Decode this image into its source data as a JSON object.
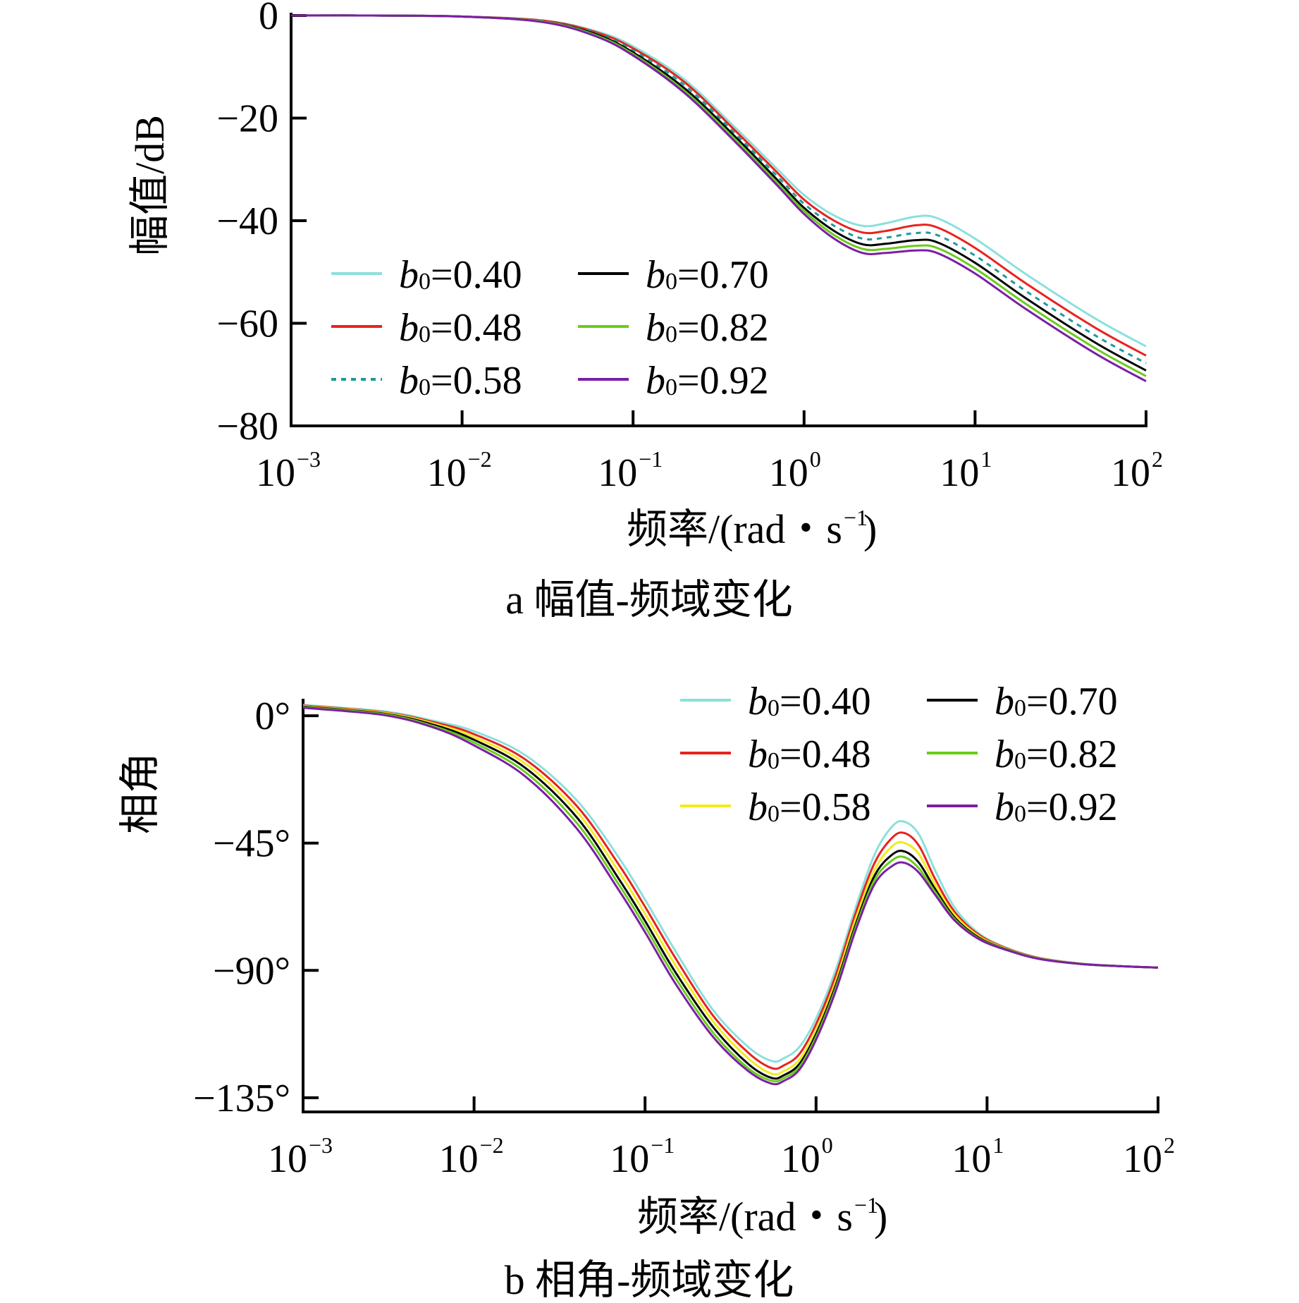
{
  "chart_data": [
    {
      "id": "amplitude",
      "type": "line",
      "caption": "a  幅值-频域变化",
      "xlabel": "频率/(rad・s",
      "xlabel_sup": "−1",
      "xlabel_close": ")",
      "ylabel": "幅值/dB",
      "xscale": "log",
      "xlim": [
        0.001,
        100
      ],
      "ylim": [
        -80,
        0
      ],
      "xticks": [
        {
          "base": "10",
          "exp": "−3",
          "value": 0.001
        },
        {
          "base": "10",
          "exp": "−2",
          "value": 0.01
        },
        {
          "base": "10",
          "exp": "−1",
          "value": 0.1
        },
        {
          "base": "10",
          "exp": "0",
          "value": 1
        },
        {
          "base": "10",
          "exp": "1",
          "value": 10
        },
        {
          "base": "10",
          "exp": "2",
          "value": 100
        }
      ],
      "yticks": [
        {
          "label": "0",
          "value": 0
        },
        {
          "label": "−20",
          "value": -20
        },
        {
          "label": "−40",
          "value": -40
        },
        {
          "label": "−60",
          "value": -60
        },
        {
          "label": "−80",
          "value": -80
        }
      ],
      "x": [
        0.001,
        0.003,
        0.01,
        0.03,
        0.06,
        0.1,
        0.2,
        0.4,
        0.7,
        1.0,
        1.5,
        2.2,
        3.0,
        4.5,
        6.0,
        10,
        20,
        50,
        100
      ],
      "series": [
        {
          "name": "b0=0.40",
          "sym": "b",
          "sub": "0",
          "val": "=0.40",
          "color": "#8be0dc",
          "dash": "",
          "values": [
            0,
            0,
            -0.2,
            -1.0,
            -3.0,
            -6.0,
            -12.5,
            -22.0,
            -30.0,
            -35.0,
            -39.0,
            -41.0,
            -40.5,
            -39.2,
            -39.5,
            -43.5,
            -50.5,
            -59.0,
            -64.5
          ]
        },
        {
          "name": "b0=0.48",
          "sym": "b",
          "sub": "0",
          "val": "=0.48",
          "color": "#e8231e",
          "dash": "",
          "values": [
            0,
            0,
            -0.2,
            -1.0,
            -3.2,
            -6.4,
            -13.0,
            -22.6,
            -30.7,
            -35.9,
            -40.0,
            -42.3,
            -42.0,
            -40.9,
            -41.3,
            -45.3,
            -52.3,
            -60.8,
            -66.3
          ]
        },
        {
          "name": "b0=0.58",
          "sym": "b",
          "sub": "0",
          "val": "=0.58",
          "color": "#1e9a9a",
          "dash": "7,7",
          "values": [
            0,
            0,
            -0.2,
            -1.1,
            -3.4,
            -6.8,
            -13.6,
            -23.2,
            -31.4,
            -36.7,
            -41.0,
            -43.5,
            -43.3,
            -42.4,
            -42.8,
            -46.8,
            -53.8,
            -62.3,
            -67.8
          ]
        },
        {
          "name": "b0=0.70",
          "sym": "b",
          "sub": "0",
          "val": "=0.70",
          "color": "#000000",
          "dash": "",
          "values": [
            0,
            0,
            -0.2,
            -1.2,
            -3.6,
            -7.2,
            -14.2,
            -23.8,
            -32.1,
            -37.5,
            -42.0,
            -44.6,
            -44.5,
            -43.8,
            -44.2,
            -48.2,
            -55.2,
            -63.7,
            -69.2
          ]
        },
        {
          "name": "b0=0.82",
          "sym": "b",
          "sub": "0",
          "val": "=0.82",
          "color": "#69cc19",
          "dash": "",
          "values": [
            0,
            0,
            -0.2,
            -1.2,
            -3.8,
            -7.5,
            -14.7,
            -24.3,
            -32.7,
            -38.1,
            -42.8,
            -45.5,
            -45.5,
            -44.9,
            -45.3,
            -49.3,
            -56.3,
            -64.8,
            -70.3
          ]
        },
        {
          "name": "b0=0.92",
          "sym": "b",
          "sub": "0",
          "val": "=0.92",
          "color": "#7a1fa6",
          "dash": "",
          "values": [
            0,
            0,
            -0.2,
            -1.3,
            -4.0,
            -7.8,
            -15.1,
            -24.8,
            -33.2,
            -38.7,
            -43.5,
            -46.3,
            -46.3,
            -45.8,
            -46.3,
            -50.3,
            -57.3,
            -65.8,
            -71.3
          ]
        }
      ]
    },
    {
      "id": "phase",
      "type": "line",
      "caption": "b  相角-频域变化",
      "xlabel": "频率/(rad・s",
      "xlabel_sup": "−1",
      "xlabel_close": ")",
      "ylabel": "相角",
      "xscale": "log",
      "xlim": [
        0.001,
        100
      ],
      "ylim": [
        -140,
        5
      ],
      "xticks": [
        {
          "base": "10",
          "exp": "−3",
          "value": 0.001
        },
        {
          "base": "10",
          "exp": "−2",
          "value": 0.01
        },
        {
          "base": "10",
          "exp": "−1",
          "value": 0.1
        },
        {
          "base": "10",
          "exp": "0",
          "value": 1
        },
        {
          "base": "10",
          "exp": "1",
          "value": 10
        },
        {
          "base": "10",
          "exp": "2",
          "value": 100
        }
      ],
      "yticks": [
        {
          "label": "0°",
          "value": 0
        },
        {
          "label": "−45°",
          "value": -45
        },
        {
          "label": "−90°",
          "value": -90
        },
        {
          "label": "−135°",
          "value": -135
        }
      ],
      "x": [
        0.001,
        0.003,
        0.006,
        0.01,
        0.02,
        0.04,
        0.07,
        0.1,
        0.15,
        0.25,
        0.4,
        0.55,
        0.65,
        0.8,
        1.0,
        1.3,
        1.7,
        2.2,
        2.8,
        3.3,
        4.0,
        5.0,
        6.5,
        9.0,
        13,
        20,
        35,
        60,
        100
      ],
      "series": [
        {
          "name": "b0=0.40",
          "sym": "b",
          "sub": "0",
          "val": "=0.40",
          "color": "#8be0dc",
          "dash": "",
          "values": [
            3.8,
            1.5,
            -2.0,
            -5.5,
            -14.0,
            -30.0,
            -50.0,
            -65.0,
            -83.0,
            -104.0,
            -117.0,
            -122.0,
            -121.0,
            -117.0,
            -107.0,
            -90.0,
            -68.0,
            -49.0,
            -39.0,
            -37.5,
            -42.0,
            -55.0,
            -68.0,
            -77.0,
            -82.0,
            -85.5,
            -87.5,
            -88.5,
            -89.0
          ]
        },
        {
          "name": "b0=0.48",
          "sym": "b",
          "sub": "0",
          "val": "=0.48",
          "color": "#e8231e",
          "dash": "",
          "values": [
            3.6,
            1.2,
            -2.5,
            -6.5,
            -15.5,
            -32.0,
            -52.5,
            -67.5,
            -85.5,
            -106.0,
            -119.0,
            -124.5,
            -123.5,
            -119.5,
            -109.0,
            -92.0,
            -70.0,
            -52.0,
            -43.0,
            -41.5,
            -46.0,
            -58.0,
            -69.5,
            -77.5,
            -82.2,
            -85.6,
            -87.6,
            -88.5,
            -89.0
          ]
        },
        {
          "name": "b0=0.58",
          "sym": "b",
          "sub": "0",
          "val": "=0.58",
          "color": "#f0ec1e",
          "dash": "",
          "values": [
            3.4,
            1.0,
            -3.0,
            -7.5,
            -17.0,
            -34.0,
            -55.0,
            -70.0,
            -88.0,
            -108.0,
            -121.0,
            -126.5,
            -125.5,
            -121.5,
            -111.0,
            -94.0,
            -72.0,
            -54.5,
            -46.0,
            -45.0,
            -49.0,
            -60.0,
            -70.5,
            -78.0,
            -82.4,
            -85.7,
            -87.6,
            -88.5,
            -89.0
          ]
        },
        {
          "name": "b0=0.70",
          "sym": "b",
          "sub": "0",
          "val": "=0.70",
          "color": "#000000",
          "dash": "",
          "values": [
            3.2,
            0.7,
            -3.5,
            -8.5,
            -18.5,
            -36.0,
            -57.5,
            -72.5,
            -90.5,
            -110.0,
            -123.0,
            -128.0,
            -127.0,
            -123.0,
            -112.5,
            -95.5,
            -74.0,
            -56.5,
            -49.0,
            -48.0,
            -52.0,
            -61.5,
            -71.5,
            -78.5,
            -82.6,
            -85.8,
            -87.7,
            -88.5,
            -89.0
          ]
        },
        {
          "name": "b0=0.82",
          "sym": "b",
          "sub": "0",
          "val": "=0.82",
          "color": "#69cc19",
          "dash": "",
          "values": [
            3.0,
            0.5,
            -4.0,
            -9.5,
            -20.0,
            -38.0,
            -59.5,
            -74.5,
            -92.5,
            -112.0,
            -124.5,
            -129.0,
            -128.0,
            -124.0,
            -113.5,
            -96.5,
            -75.0,
            -58.0,
            -51.0,
            -50.0,
            -54.0,
            -62.5,
            -72.0,
            -78.8,
            -82.7,
            -85.8,
            -87.7,
            -88.5,
            -89.0
          ]
        },
        {
          "name": "b0=0.92",
          "sym": "b",
          "sub": "0",
          "val": "=0.92",
          "color": "#7a1fa6",
          "dash": "",
          "values": [
            2.8,
            0.2,
            -4.5,
            -10.5,
            -21.5,
            -40.0,
            -61.5,
            -76.5,
            -94.5,
            -113.5,
            -125.5,
            -130.0,
            -129.0,
            -125.0,
            -114.5,
            -97.5,
            -76.0,
            -59.5,
            -53.0,
            -52.0,
            -55.5,
            -63.5,
            -72.5,
            -79.0,
            -82.8,
            -85.9,
            -87.7,
            -88.5,
            -89.0
          ]
        }
      ]
    }
  ]
}
